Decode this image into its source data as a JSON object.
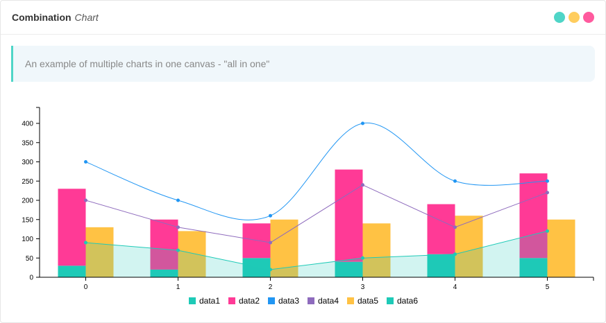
{
  "header": {
    "title": "Combination",
    "subtitle": "Chart",
    "dots": [
      "#4fd5c7",
      "#ffcd5e",
      "#ff5a9e"
    ]
  },
  "note": "An example of multiple charts in one canvas - \"all in one\"",
  "chart_data": {
    "type": "combination",
    "categories": [
      "0",
      "1",
      "2",
      "3",
      "4",
      "5"
    ],
    "ylim": [
      0,
      440
    ],
    "yticks": [
      "0",
      "50",
      "100",
      "150",
      "200",
      "250",
      "300",
      "350",
      "400"
    ],
    "legend_position": "bottom",
    "grid": false,
    "groups": [
      [
        "data1",
        "data2"
      ]
    ],
    "series": [
      {
        "name": "data1",
        "type": "bar",
        "color": "#1ecab7",
        "values": [
          30,
          20,
          50,
          40,
          60,
          50
        ]
      },
      {
        "name": "data2",
        "type": "bar",
        "color": "#ff3a96",
        "values": [
          200,
          130,
          90,
          240,
          130,
          220
        ]
      },
      {
        "name": "data3",
        "type": "spline",
        "color": "#2196f3",
        "values": [
          300,
          200,
          160,
          400,
          250,
          250
        ]
      },
      {
        "name": "data4",
        "type": "line",
        "color": "#8e6bbd",
        "values": [
          200,
          130,
          90,
          240,
          130,
          220
        ]
      },
      {
        "name": "data5",
        "type": "bar",
        "color": "#ffc244",
        "values": [
          130,
          120,
          150,
          140,
          160,
          150
        ]
      },
      {
        "name": "data6",
        "type": "area",
        "color": "#1ecab7",
        "values": [
          90,
          70,
          20,
          50,
          60,
          120
        ]
      }
    ]
  }
}
